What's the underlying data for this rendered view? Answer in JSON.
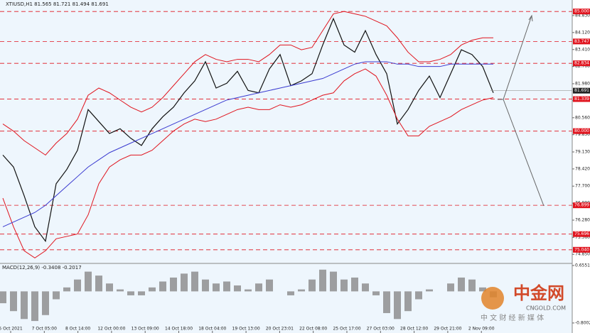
{
  "chart_data": {
    "type": "line",
    "title": "XTIUSD,H1  81.565 81.721 81.494 81.691",
    "series": [
      {
        "name": "Close",
        "color": "#111111",
        "values": [
          79.0,
          78.5,
          77.3,
          76.0,
          75.4,
          77.8,
          78.4,
          79.2,
          80.9,
          80.4,
          79.9,
          80.1,
          79.7,
          79.4,
          80.1,
          80.6,
          81.0,
          81.6,
          82.1,
          82.9,
          81.8,
          82.0,
          82.5,
          81.7,
          81.6,
          82.6,
          83.2,
          81.9,
          82.1,
          82.4,
          83.6,
          84.7,
          83.6,
          83.3,
          84.2,
          83.2,
          82.4,
          80.3,
          80.9,
          81.7,
          82.3,
          81.4,
          82.4,
          83.4,
          83.2,
          82.7,
          81.6
        ]
      },
      {
        "name": "Upper band",
        "color": "#e0141e",
        "values": [
          80.3,
          80.0,
          79.6,
          79.3,
          79.0,
          79.5,
          79.9,
          80.5,
          81.5,
          81.8,
          81.6,
          81.3,
          81.0,
          80.8,
          81.0,
          81.4,
          81.9,
          82.4,
          82.9,
          83.2,
          83.0,
          82.9,
          83.0,
          83.0,
          82.9,
          83.2,
          83.6,
          83.6,
          83.4,
          83.5,
          84.2,
          84.9,
          85.0,
          84.9,
          84.8,
          84.6,
          84.4,
          83.9,
          83.3,
          82.9,
          82.9,
          83.0,
          83.2,
          83.6,
          83.8,
          83.9,
          83.9
        ]
      },
      {
        "name": "Lower band",
        "color": "#e0141e",
        "values": [
          77.2,
          76.0,
          75.0,
          74.7,
          75.0,
          75.5,
          75.6,
          75.7,
          76.5,
          77.8,
          78.5,
          78.8,
          79.0,
          79.0,
          79.2,
          79.6,
          80.0,
          80.3,
          80.5,
          80.4,
          80.5,
          80.7,
          80.9,
          81.0,
          80.9,
          80.9,
          81.1,
          81.0,
          81.1,
          81.3,
          81.5,
          81.6,
          82.1,
          82.4,
          82.6,
          82.3,
          81.5,
          80.5,
          79.8,
          79.8,
          80.2,
          80.4,
          80.6,
          80.9,
          81.1,
          81.3,
          81.4
        ]
      },
      {
        "name": "Moving average",
        "color": "#3a3ad0",
        "values": [
          76.0,
          76.2,
          76.4,
          76.6,
          76.9,
          77.3,
          77.7,
          78.1,
          78.5,
          78.8,
          79.1,
          79.3,
          79.5,
          79.7,
          79.9,
          80.1,
          80.3,
          80.5,
          80.7,
          80.9,
          81.1,
          81.3,
          81.4,
          81.5,
          81.6,
          81.7,
          81.8,
          81.9,
          82.0,
          82.1,
          82.2,
          82.4,
          82.6,
          82.8,
          82.9,
          82.9,
          82.9,
          82.8,
          82.8,
          82.7,
          82.7,
          82.7,
          82.8,
          82.8,
          82.8,
          82.8,
          82.8
        ]
      }
    ],
    "ylim": [
      74.5,
      85.48
    ],
    "yticks": [
      {
        "value": 84.83,
        "label": "84.830"
      },
      {
        "value": 84.12,
        "label": "84.120"
      },
      {
        "value": 83.41,
        "label": "83.410"
      },
      {
        "value": 82.7,
        "label": "82.700"
      },
      {
        "value": 81.98,
        "label": "81.980"
      },
      {
        "value": 81.27,
        "label": "81.270"
      },
      {
        "value": 80.56,
        "label": "80.560"
      },
      {
        "value": 79.85,
        "label": "79.850"
      },
      {
        "value": 79.13,
        "label": "79.130"
      },
      {
        "value": 78.42,
        "label": "78.420"
      },
      {
        "value": 77.7,
        "label": "77.700"
      },
      {
        "value": 76.99,
        "label": "76.990"
      },
      {
        "value": 76.28,
        "label": "76.280"
      },
      {
        "value": 75.56,
        "label": "75.560"
      },
      {
        "value": 74.85,
        "label": "74.850"
      }
    ],
    "levels": [
      {
        "value": 85,
        "label": "85.000"
      },
      {
        "value": 83.747,
        "label": "83.747"
      },
      {
        "value": 82.834,
        "label": "82.834"
      },
      {
        "value": 81.339,
        "label": "81.339"
      },
      {
        "value": 80,
        "label": "80.000"
      },
      {
        "value": 76.899,
        "label": "76.899"
      },
      {
        "value": 75.696,
        "label": "75.696"
      },
      {
        "value": 75.04,
        "label": "75.040"
      }
    ],
    "level_color": "#e0141e",
    "current_price": {
      "value": 81.691,
      "label": "81.691"
    },
    "x_labels": [
      "5 Oct 2021",
      "7 Oct 05:00",
      "8 Oct 14:00",
      "12 Oct 00:00",
      "13 Oct 09:00",
      "14 Oct 18:00",
      "18 Oct 04:00",
      "19 Oct 13:00",
      "20 Oct 23:01",
      "22 Oct 08:00",
      "25 Oct 17:00",
      "27 Oct 03:00",
      "28 Oct 12:00",
      "29 Oct 21:00",
      "2 Nov 09:00"
    ],
    "macd": {
      "title": "MACD(12,26,9) -0.3408 -0.2017",
      "color": "#888888",
      "values": [
        -0.3,
        -0.5,
        -0.7,
        -0.75,
        -0.6,
        -0.2,
        0.1,
        0.3,
        0.5,
        0.4,
        0.2,
        0.05,
        -0.1,
        -0.1,
        0.1,
        0.25,
        0.35,
        0.45,
        0.5,
        0.3,
        0.2,
        0.25,
        0.15,
        0.05,
        0.2,
        0.3,
        0.0,
        -0.1,
        0.05,
        0.3,
        0.55,
        0.5,
        0.3,
        0.35,
        0.2,
        -0.1,
        -0.55,
        -0.7,
        -0.5,
        -0.2,
        0.05,
        0.0,
        0.2,
        0.35,
        0.3,
        0.1,
        -0.15
      ],
      "ylim": [
        -1.0,
        0.69
      ],
      "yticks": [
        0.6551,
        -0.8002
      ]
    },
    "watermark": {
      "name": "中金网",
      "site": "CNGOLD.COM",
      "slogan": "中 文 财 经 新 媒 体"
    }
  }
}
